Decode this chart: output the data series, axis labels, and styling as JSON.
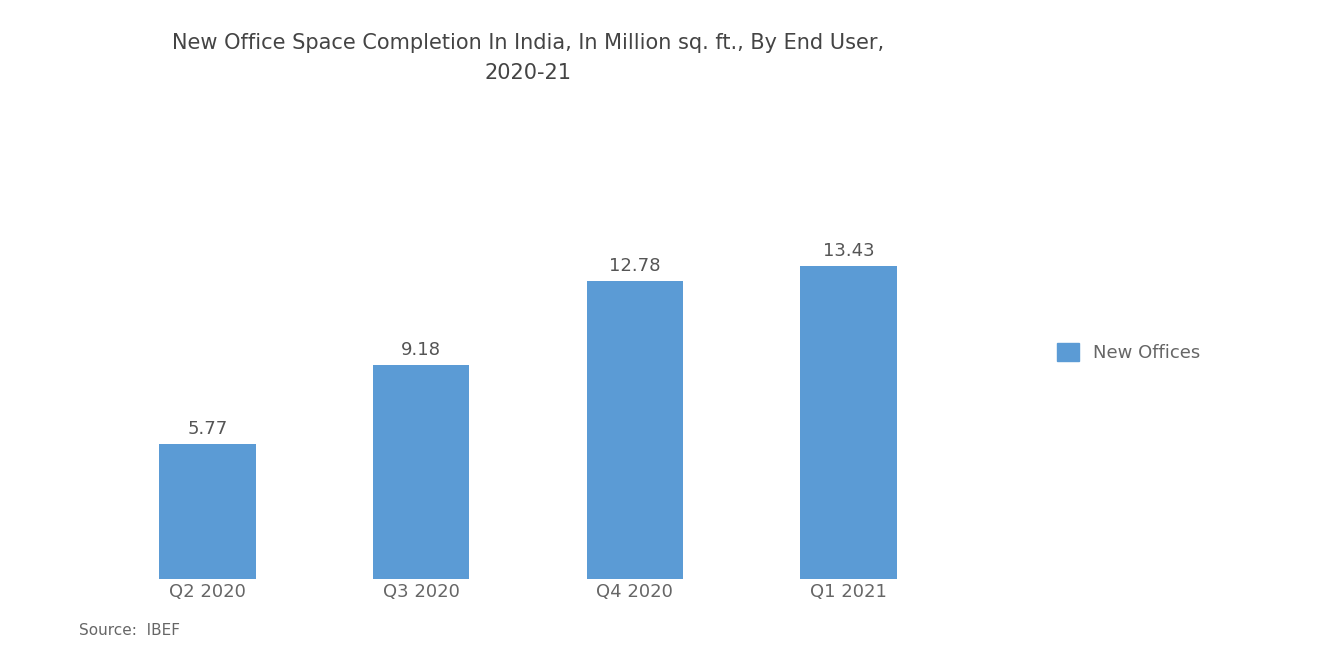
{
  "title": "New Office Space Completion In India, In Million sq. ft., By End User,\n2020-21",
  "categories": [
    "Q2 2020",
    "Q3 2020",
    "Q4 2020",
    "Q1 2021"
  ],
  "values": [
    5.77,
    9.18,
    12.78,
    13.43
  ],
  "bar_color": "#5B9BD5",
  "background_color": "#FFFFFF",
  "title_fontsize": 15,
  "label_fontsize": 13,
  "value_fontsize": 13,
  "legend_label": "New Offices",
  "source_text": "Source:  IBEF",
  "ylim": [
    0,
    16
  ],
  "bar_width": 0.45
}
